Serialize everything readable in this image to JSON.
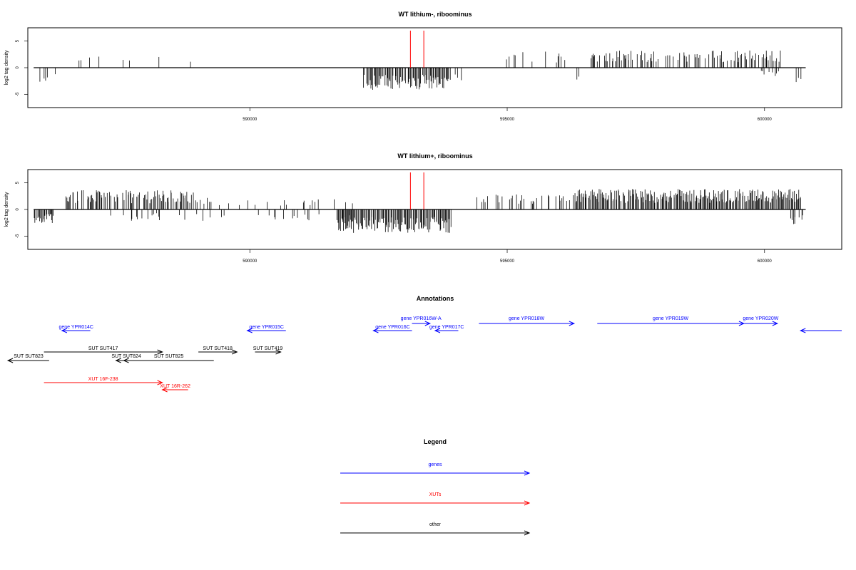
{
  "chart_data": [
    {
      "type": "bar",
      "title": "WT lithium-, riboominus",
      "ylabel": "log2 tag density",
      "xlim": [
        585700,
        601500
      ],
      "ylim": [
        -7.5,
        7.5
      ],
      "x_ticks": [
        590000,
        595000,
        600000
      ],
      "y_ticks": [
        -5,
        0,
        5
      ],
      "markers": [
        593120,
        593380
      ],
      "marker_color": "#ff0000",
      "bar_color": "#000000",
      "regions": [
        {
          "start": 585800,
          "end": 586300,
          "density": 0.25,
          "mode": "neg",
          "amp": 2.6
        },
        {
          "start": 586300,
          "end": 588900,
          "density": 0.05,
          "mode": "pos",
          "amp": 2.5
        },
        {
          "start": 588900,
          "end": 590500,
          "density": 0.02,
          "mode": "mix",
          "amp": 2.0
        },
        {
          "start": 591300,
          "end": 591700,
          "density": 0.04,
          "mode": "neg",
          "amp": 1.8
        },
        {
          "start": 592200,
          "end": 593900,
          "density": 0.9,
          "mode": "neg",
          "amp": 3.8
        },
        {
          "start": 593900,
          "end": 594100,
          "density": 0.2,
          "mode": "mix",
          "amp": 2.2
        },
        {
          "start": 594400,
          "end": 596400,
          "density": 0.12,
          "mode": "pos",
          "amp": 2.8
        },
        {
          "start": 596300,
          "end": 596400,
          "density": 0.4,
          "mode": "neg",
          "amp": 3.0
        },
        {
          "start": 596600,
          "end": 600300,
          "density": 0.45,
          "mode": "pos",
          "amp": 3.0
        },
        {
          "start": 599900,
          "end": 600300,
          "density": 0.3,
          "mode": "neg",
          "amp": 1.5
        },
        {
          "start": 600600,
          "end": 600700,
          "density": 0.3,
          "mode": "neg",
          "amp": 2.6
        }
      ]
    },
    {
      "type": "bar",
      "title": "WT lithium+, riboominus",
      "ylabel": "log2 tag density",
      "xlim": [
        585700,
        601500
      ],
      "ylim": [
        -7.5,
        7.5
      ],
      "x_ticks": [
        590000,
        595000,
        600000
      ],
      "y_ticks": [
        -5,
        0,
        5
      ],
      "markers": [
        593120,
        593380
      ],
      "marker_color": "#ff0000",
      "bar_color": "#000000",
      "regions": [
        {
          "start": 585800,
          "end": 586200,
          "density": 0.9,
          "mode": "neg",
          "amp": 2.4
        },
        {
          "start": 586400,
          "end": 588900,
          "density": 0.7,
          "mode": "pos",
          "amp": 3.3
        },
        {
          "start": 587200,
          "end": 588900,
          "density": 0.15,
          "mode": "neg",
          "amp": 2.0
        },
        {
          "start": 588900,
          "end": 591500,
          "density": 0.25,
          "mode": "mix",
          "amp": 2.0
        },
        {
          "start": 591500,
          "end": 592000,
          "density": 0.2,
          "mode": "mix",
          "amp": 2.5
        },
        {
          "start": 591700,
          "end": 593900,
          "density": 1.0,
          "mode": "neg",
          "amp": 4.0
        },
        {
          "start": 594400,
          "end": 596400,
          "density": 0.35,
          "mode": "pos",
          "amp": 2.6
        },
        {
          "start": 596300,
          "end": 600700,
          "density": 0.95,
          "mode": "pos",
          "amp": 3.5
        },
        {
          "start": 600500,
          "end": 600750,
          "density": 0.6,
          "mode": "neg",
          "amp": 2.5
        }
      ]
    }
  ],
  "annotations": {
    "title": "Annotations",
    "items": [
      {
        "label": "gene YPR014C",
        "start": 586900,
        "end": 586350,
        "color": "#0000ff"
      },
      {
        "label": "gene YPR015C",
        "start": 590700,
        "end": 589950,
        "color": "#0000ff"
      },
      {
        "label": "gene YPR016W-A",
        "start": 593150,
        "end": 593500,
        "color": "#0000ff"
      },
      {
        "label": "gene YPR016C",
        "start": 593150,
        "end": 592400,
        "color": "#0000ff"
      },
      {
        "label": "gene YPR017C",
        "start": 594050,
        "end": 593600,
        "color": "#0000ff"
      },
      {
        "label": "gene YPR018W",
        "start": 594450,
        "end": 596300,
        "color": "#0000ff"
      },
      {
        "label": "gene YPR019W",
        "start": 596750,
        "end": 599600,
        "color": "#0000ff"
      },
      {
        "label": "gene YPR020W",
        "start": 599600,
        "end": 600250,
        "color": "#0000ff"
      },
      {
        "label": "",
        "start": 601500,
        "end": 600700,
        "color": "#0000ff"
      },
      {
        "label": "SUT SUT417",
        "start": 586000,
        "end": 588300,
        "color": "#000000"
      },
      {
        "label": "SUT SUT418",
        "start": 589000,
        "end": 589750,
        "color": "#000000"
      },
      {
        "label": "SUT SUT419",
        "start": 590100,
        "end": 590600,
        "color": "#000000"
      },
      {
        "label": "SUT SUT823",
        "start": 586100,
        "end": 585300,
        "color": "#000000"
      },
      {
        "label": "SUT SUT824",
        "start": 587800,
        "end": 587400,
        "color": "#000000"
      },
      {
        "label": "SUT SUT825",
        "start": 589300,
        "end": 587550,
        "color": "#000000"
      },
      {
        "label": "XUT 16F-238",
        "start": 586000,
        "end": 588300,
        "color": "#ff0000"
      },
      {
        "label": "XUT 16R-262",
        "start": 588800,
        "end": 588300,
        "color": "#ff0000"
      }
    ]
  },
  "legend": {
    "title": "Legend",
    "items": [
      {
        "label": "genes",
        "color": "#0000ff"
      },
      {
        "label": "XUTs",
        "color": "#ff0000"
      },
      {
        "label": "other",
        "color": "#000000"
      }
    ]
  }
}
